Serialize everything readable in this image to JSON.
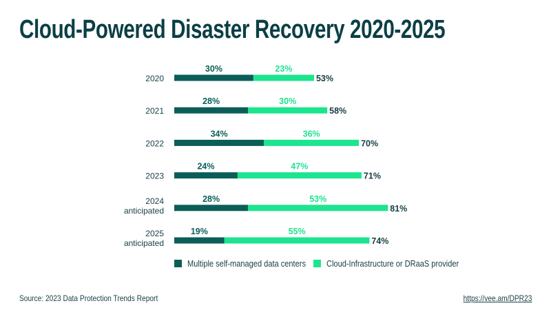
{
  "title": "Cloud-Powered Disaster Recovery 2020-2025",
  "source": "Source: 2023 Data Protection Trends Report",
  "url": "https://vee.am/DPR23",
  "colors": {
    "self_managed": "#0b5e57",
    "cloud": "#1de48f",
    "text": "#173e44"
  },
  "chart_data": {
    "type": "bar",
    "orientation": "horizontal",
    "stacked": true,
    "categories": [
      [
        "2020"
      ],
      [
        "2021"
      ],
      [
        "2022"
      ],
      [
        "2023"
      ],
      [
        "2024",
        "anticipated"
      ],
      [
        "2025",
        "anticipated"
      ]
    ],
    "series": [
      {
        "name": "Multiple self-managed data centers",
        "values": [
          30,
          28,
          34,
          24,
          28,
          19
        ]
      },
      {
        "name": "Cloud-Infrastructure or DRaaS provider",
        "values": [
          23,
          30,
          36,
          47,
          53,
          55
        ]
      }
    ],
    "totals": [
      53,
      58,
      70,
      71,
      81,
      74
    ],
    "unit": "%",
    "grid": false,
    "legend": "bottom"
  }
}
